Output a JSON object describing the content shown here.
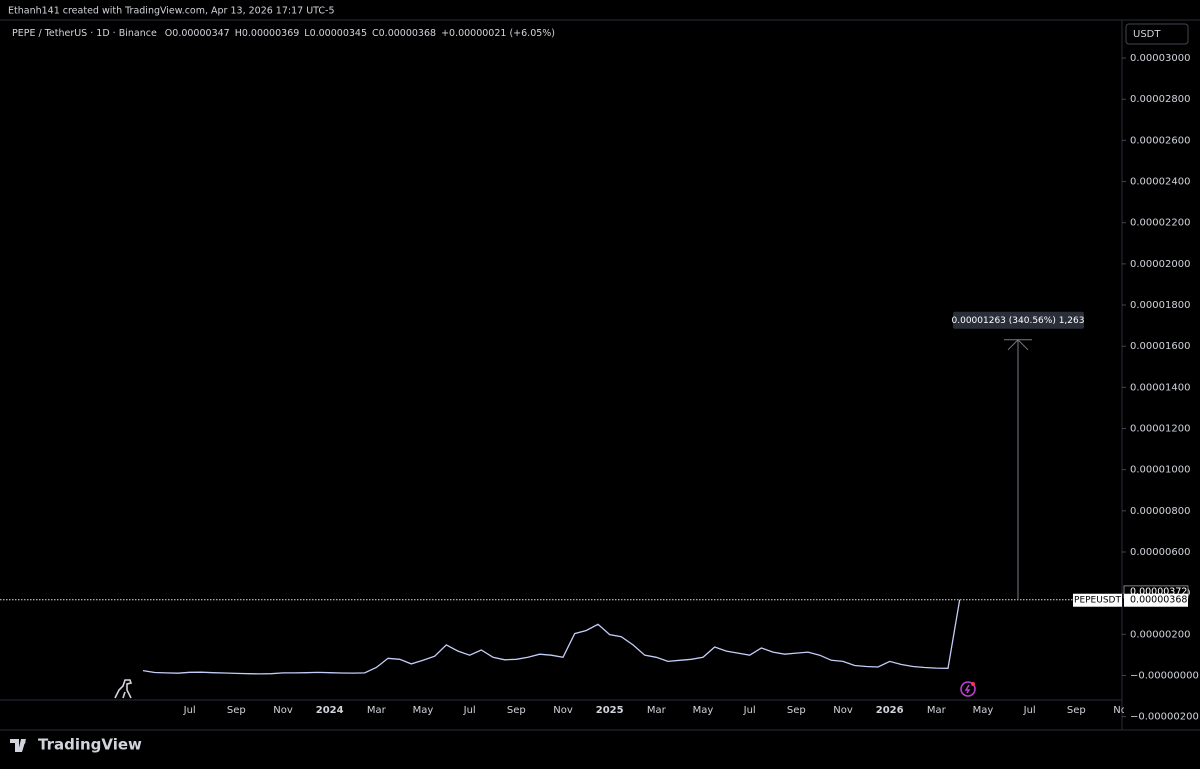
{
  "header": {
    "attribution": "Ethanh141 created with TradingView.com, Apr 13, 2026 17:17 UTC-5"
  },
  "chart_data": {
    "type": "line",
    "symbol": "PEPE / TetherUS · 1D · Binance",
    "ohlc": [
      {
        "key": "O",
        "label": "0.00000347"
      },
      {
        "key": "H",
        "label": "0.00000369"
      },
      {
        "key": "L",
        "label": "0.00000345"
      },
      {
        "key": "C",
        "label": "0.00000368"
      }
    ],
    "change": "+0.00000021 (+6.05%)",
    "currency": "USDT",
    "categories": [
      null,
      null,
      null,
      null,
      "Jul",
      null,
      null,
      null,
      "Sep",
      null,
      null,
      null,
      "Nov",
      null,
      null,
      null,
      "2024",
      null,
      null,
      null,
      "Mar",
      null,
      null,
      null,
      "May",
      null,
      null,
      null,
      "Jul",
      null,
      null,
      null,
      "Sep",
      null,
      null,
      null,
      "Nov",
      null,
      null,
      null,
      "2025",
      null,
      null,
      null,
      "Mar",
      null,
      null,
      null,
      "May",
      null,
      null,
      null,
      "Jul",
      null,
      null,
      null,
      "Sep",
      null,
      null,
      null,
      "Nov",
      null,
      null,
      null,
      "2026",
      null,
      null,
      null,
      "Mar",
      null,
      null,
      null,
      "May",
      null,
      null,
      null,
      "Jul",
      null,
      null,
      null,
      "Sep",
      null,
      null,
      null,
      "Nov"
    ],
    "series": [
      {
        "name": "PEPEUSDT",
        "color": "#c3cdf7",
        "values": [
          2.35e-07,
          1.45e-07,
          1.25e-07,
          1.1e-07,
          1.55e-07,
          1.6e-07,
          1.35e-07,
          1.2e-07,
          1e-07,
          8.5e-08,
          7.5e-08,
          8.5e-08,
          1.25e-07,
          1.25e-07,
          1.35e-07,
          1.5e-07,
          1.35e-07,
          1.2e-07,
          1.15e-07,
          1.25e-07,
          3.85e-07,
          8.35e-07,
          7.85e-07,
          5.6e-07,
          7.35e-07,
          9.35e-07,
          1.485e-06,
          1.185e-06,
          9.85e-07,
          1.235e-06,
          8.85e-07,
          7.6e-07,
          7.85e-07,
          8.85e-07,
          1.035e-06,
          9.85e-07,
          8.85e-07,
          2.035e-06,
          2.185e-06,
          2.485e-06,
          1.985e-06,
          1.885e-06,
          1.485e-06,
          9.85e-07,
          8.85e-07,
          6.85e-07,
          7.35e-07,
          7.85e-07,
          8.85e-07,
          1.385e-06,
          1.185e-06,
          1.085e-06,
          9.85e-07,
          1.335e-06,
          1.135e-06,
          1.035e-06,
          1.085e-06,
          1.135e-06,
          9.85e-07,
          7.35e-07,
          6.85e-07,
          4.85e-07,
          4.35e-07,
          4.1e-07,
          6.85e-07,
          5.35e-07,
          4.35e-07,
          3.85e-07,
          3.6e-07,
          3.5e-07,
          3.68e-06,
          null,
          null,
          null,
          null,
          null,
          null,
          null,
          null,
          null,
          null,
          null,
          null,
          null,
          null
        ]
      }
    ],
    "ylim": [
      -2.65e-06,
      3.185e-05
    ],
    "yticks": [
      {
        "value": -2e-06,
        "label": "−0.00000200"
      },
      {
        "value": 0,
        "label": "−0.00000000"
      },
      {
        "value": 2e-06,
        "label": "0.00000200"
      },
      {
        "value": 4e-06,
        "label": "0.00000400"
      },
      {
        "value": 6e-06,
        "label": "0.00000600"
      },
      {
        "value": 8e-06,
        "label": "0.00000800"
      },
      {
        "value": 1e-05,
        "label": "0.00001000"
      },
      {
        "value": 1.2e-05,
        "label": "0.00001200"
      },
      {
        "value": 1.4e-05,
        "label": "0.00001400"
      },
      {
        "value": 1.6e-05,
        "label": "0.00001600"
      },
      {
        "value": 1.8e-05,
        "label": "0.00001800"
      },
      {
        "value": 2e-05,
        "label": "0.00002000"
      },
      {
        "value": 2.2e-05,
        "label": "0.00002200"
      },
      {
        "value": 2.4e-05,
        "label": "0.00002400"
      },
      {
        "value": 2.6e-05,
        "label": "0.00002600"
      },
      {
        "value": 2.8e-05,
        "label": "0.00002800"
      },
      {
        "value": 3e-05,
        "label": "0.00003000"
      }
    ],
    "grid": false,
    "last_price": {
      "value": 3.68e-06,
      "label": "0.00000368"
    },
    "price_marker": {
      "value": 3.72e-06,
      "label": "0.00000372"
    },
    "measure": {
      "change": 1.263e-05,
      "label": "0.00001263 (340.56%) 1,263"
    }
  },
  "footer": {
    "brand": "TradingView"
  }
}
